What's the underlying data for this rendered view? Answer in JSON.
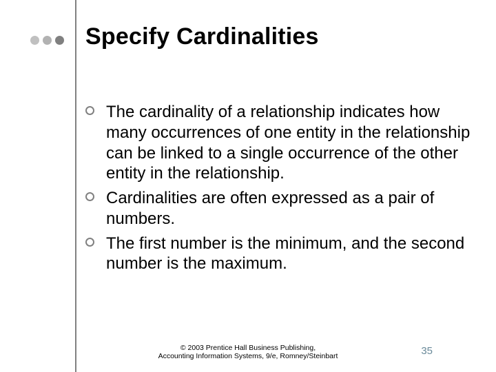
{
  "colors": {
    "title": "#000000",
    "body": "#000000",
    "vrule": "#808080",
    "dot1": "#c0c0c0",
    "dot2": "#b2b2b2",
    "dot3": "#808080",
    "bullet_border": "#808080",
    "footer": "#000000",
    "pagenum": "#6a8a9a"
  },
  "title": "Specify Cardinalities",
  "bullets": [
    "The cardinality of a relationship indicates how many occurrences of one entity in the relationship can be linked to a single occurrence of the other entity in the relationship.",
    "Cardinalities are often expressed as a pair of numbers.",
    "The first number is the minimum, and the second number is the maximum."
  ],
  "footer_line1": "© 2003 Prentice Hall Business Publishing,",
  "footer_line2": "Accounting Information Systems, 9/e, Romney/Steinbart",
  "page_number": "35"
}
